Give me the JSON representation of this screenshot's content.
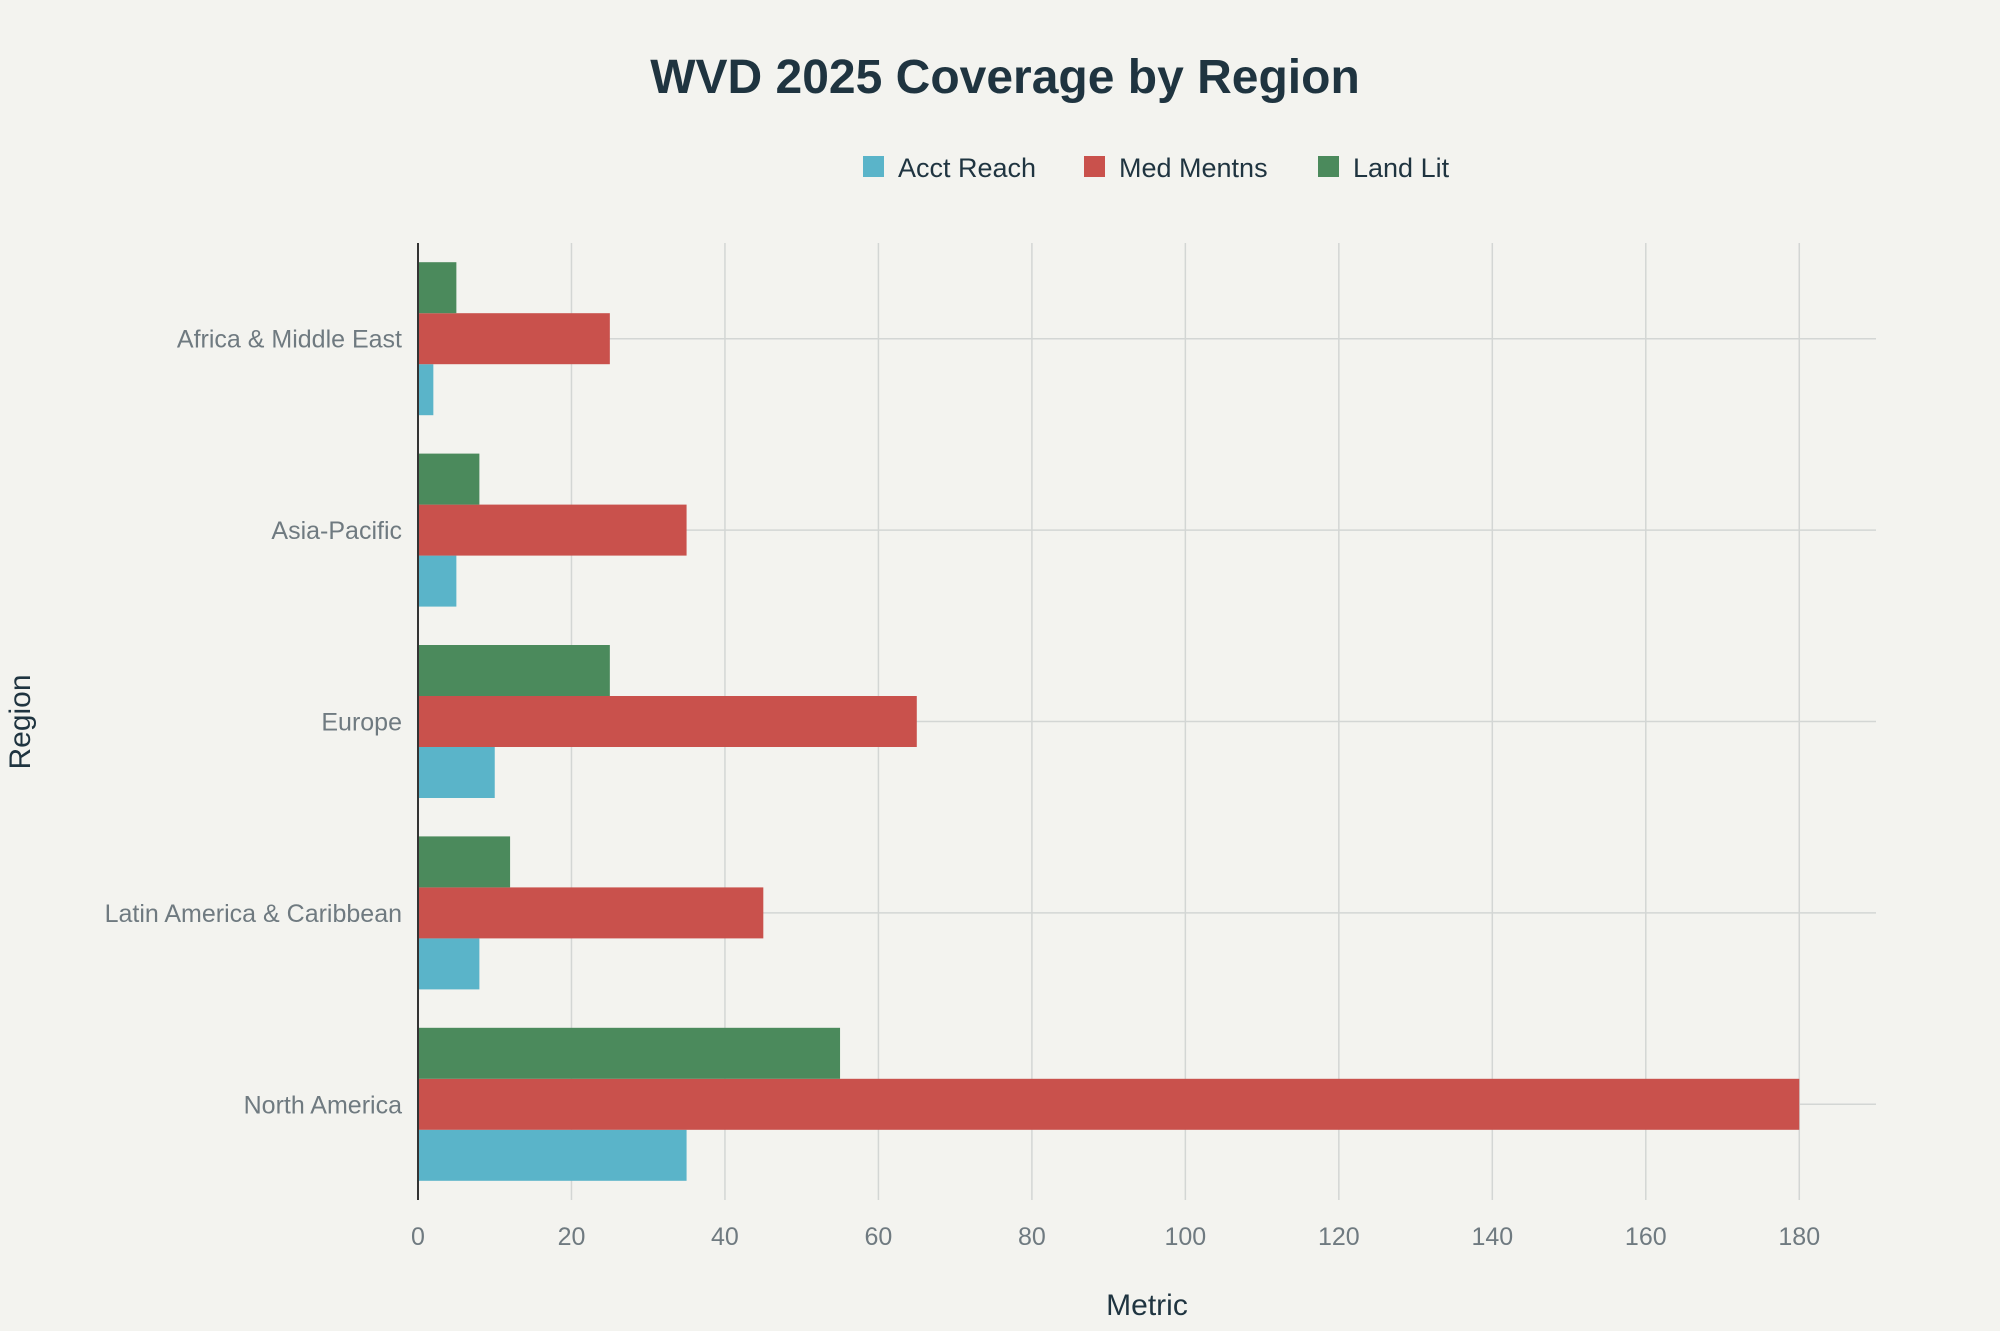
{
  "chart_data": {
    "type": "bar",
    "orientation": "horizontal",
    "title": "WVD 2025 Coverage by Region",
    "xlabel": "Metric",
    "ylabel": "Region",
    "categories": [
      "North America",
      "Latin America & Caribbean",
      "Europe",
      "Asia-Pacific",
      "Africa & Middle East"
    ],
    "series": [
      {
        "name": "Acct Reach",
        "color": "#5ab4c9",
        "values": [
          35,
          8,
          10,
          5,
          2
        ]
      },
      {
        "name": "Med Mentns",
        "color": "#c9514c",
        "values": [
          180,
          45,
          65,
          35,
          25
        ]
      },
      {
        "name": "Land Lit",
        "color": "#4b8a5c",
        "values": [
          55,
          12,
          25,
          8,
          5
        ]
      }
    ],
    "xlim": [
      0,
      190
    ],
    "xticks": [
      0,
      20,
      40,
      60,
      80,
      100,
      120,
      140,
      160,
      180
    ],
    "grid": true,
    "legend_position": "top-center"
  }
}
